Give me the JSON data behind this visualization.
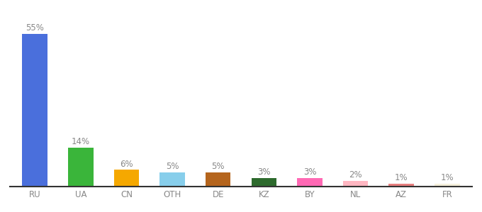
{
  "categories": [
    "RU",
    "UA",
    "CN",
    "OTH",
    "DE",
    "KZ",
    "BY",
    "NL",
    "AZ",
    "FR"
  ],
  "values": [
    55,
    14,
    6,
    5,
    5,
    3,
    3,
    2,
    1,
    1
  ],
  "bar_colors": [
    "#4a6fdc",
    "#3ab53a",
    "#f5a800",
    "#87ceeb",
    "#b5651d",
    "#2d6a2d",
    "#ff69b4",
    "#ffb6c1",
    "#e88080",
    "#f5f0dc"
  ],
  "ylim": [
    0,
    62
  ],
  "background_color": "#ffffff",
  "label_color": "#888888",
  "bar_width": 0.55,
  "label_fontsize": 8.5,
  "tick_fontsize": 8.5
}
